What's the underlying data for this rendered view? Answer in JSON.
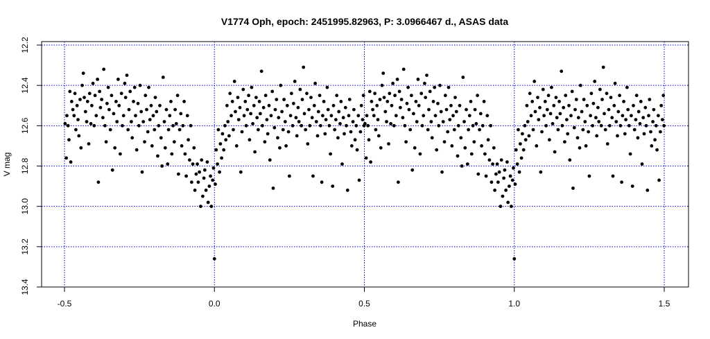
{
  "chart_data": {
    "type": "scatter",
    "title": "V1774 Oph, epoch: 2451995.82963, P: 3.0966467 d., ASAS data",
    "xlabel": "Phase",
    "ylabel": "V mag",
    "xlim": [
      -0.58,
      1.58
    ],
    "ylim": [
      13.4,
      12.2
    ],
    "y_reversed": true,
    "x_ticks": [
      -0.5,
      0.0,
      0.5,
      1.0,
      1.5
    ],
    "x_tick_labels": [
      "-0.5",
      "0.0",
      "0.5",
      "1.0",
      "1.5"
    ],
    "y_ticks": [
      12.2,
      12.4,
      12.6,
      12.8,
      13.0,
      13.2,
      13.4
    ],
    "y_tick_labels": [
      "12.2",
      "12.4",
      "12.6",
      "12.8",
      "13.0",
      "13.2",
      "13.4"
    ],
    "grid": true,
    "grid_color": "#0000cc",
    "point_color": "#000000",
    "note": "Phased light curve; points at phase p in [-0.5,0.5] are repeated at p+1.",
    "points": [
      [
        -0.498,
        12.59
      ],
      [
        -0.494,
        12.76
      ],
      [
        -0.492,
        12.55
      ],
      [
        -0.488,
        12.6
      ],
      [
        -0.485,
        12.67
      ],
      [
        -0.482,
        12.43
      ],
      [
        -0.479,
        12.78
      ],
      [
        -0.476,
        12.48
      ],
      [
        -0.472,
        12.52
      ],
      [
        -0.468,
        12.55
      ],
      [
        -0.465,
        12.44
      ],
      [
        -0.462,
        12.62
      ],
      [
        -0.458,
        12.5
      ],
      [
        -0.455,
        12.57
      ],
      [
        -0.452,
        12.65
      ],
      [
        -0.448,
        12.47
      ],
      [
        -0.445,
        12.71
      ],
      [
        -0.441,
        12.4
      ],
      [
        -0.437,
        12.34
      ],
      [
        -0.434,
        12.46
      ],
      [
        -0.43,
        12.53
      ],
      [
        -0.426,
        12.58
      ],
      [
        -0.423,
        12.48
      ],
      [
        -0.419,
        12.69
      ],
      [
        -0.416,
        12.44
      ],
      [
        -0.412,
        12.59
      ],
      [
        -0.409,
        12.5
      ],
      [
        -0.405,
        12.39
      ],
      [
        -0.401,
        12.6
      ],
      [
        -0.398,
        12.45
      ],
      [
        -0.394,
        12.55
      ],
      [
        -0.39,
        12.37
      ],
      [
        -0.387,
        12.88
      ],
      [
        -0.383,
        12.43
      ],
      [
        -0.38,
        12.51
      ],
      [
        -0.376,
        12.47
      ],
      [
        -0.372,
        12.56
      ],
      [
        -0.369,
        12.32
      ],
      [
        -0.365,
        12.6
      ],
      [
        -0.361,
        12.68
      ],
      [
        -0.358,
        12.49
      ],
      [
        -0.354,
        12.41
      ],
      [
        -0.351,
        12.52
      ],
      [
        -0.347,
        12.62
      ],
      [
        -0.343,
        12.45
      ],
      [
        -0.34,
        12.82
      ],
      [
        -0.336,
        12.54
      ],
      [
        -0.332,
        12.71
      ],
      [
        -0.328,
        12.48
      ],
      [
        -0.325,
        12.58
      ],
      [
        -0.321,
        12.37
      ],
      [
        -0.318,
        12.5
      ],
      [
        -0.314,
        12.74
      ],
      [
        -0.31,
        12.44
      ],
      [
        -0.307,
        12.6
      ],
      [
        -0.303,
        12.55
      ],
      [
        -0.299,
        12.39
      ],
      [
        -0.296,
        12.46
      ],
      [
        -0.292,
        12.35
      ],
      [
        -0.288,
        12.62
      ],
      [
        -0.285,
        12.52
      ],
      [
        -0.281,
        12.43
      ],
      [
        -0.277,
        12.58
      ],
      [
        -0.274,
        12.66
      ],
      [
        -0.27,
        12.48
      ],
      [
        -0.266,
        12.41
      ],
      [
        -0.263,
        12.55
      ],
      [
        -0.259,
        12.72
      ],
      [
        -0.255,
        12.49
      ],
      [
        -0.252,
        12.6
      ],
      [
        -0.248,
        12.4
      ],
      [
        -0.244,
        12.53
      ],
      [
        -0.241,
        12.83
      ],
      [
        -0.237,
        12.58
      ],
      [
        -0.233,
        12.68
      ],
      [
        -0.23,
        12.45
      ],
      [
        -0.226,
        12.52
      ],
      [
        -0.222,
        12.63
      ],
      [
        -0.219,
        12.41
      ],
      [
        -0.215,
        12.57
      ],
      [
        -0.211,
        12.5
      ],
      [
        -0.208,
        12.7
      ],
      [
        -0.204,
        12.55
      ],
      [
        -0.2,
        12.62
      ],
      [
        -0.197,
        12.46
      ],
      [
        -0.193,
        12.53
      ],
      [
        -0.189,
        12.75
      ],
      [
        -0.186,
        12.6
      ],
      [
        -0.182,
        12.5
      ],
      [
        -0.178,
        12.66
      ],
      [
        -0.175,
        12.8
      ],
      [
        -0.171,
        12.36
      ],
      [
        -0.167,
        12.58
      ],
      [
        -0.164,
        12.71
      ],
      [
        -0.16,
        12.52
      ],
      [
        -0.156,
        12.79
      ],
      [
        -0.153,
        12.62
      ],
      [
        -0.149,
        12.55
      ],
      [
        -0.145,
        12.48
      ],
      [
        -0.142,
        12.74
      ],
      [
        -0.138,
        12.6
      ],
      [
        -0.134,
        12.68
      ],
      [
        -0.131,
        12.52
      ],
      [
        -0.127,
        12.59
      ],
      [
        -0.123,
        12.45
      ],
      [
        -0.12,
        12.84
      ],
      [
        -0.116,
        12.62
      ],
      [
        -0.112,
        12.54
      ],
      [
        -0.109,
        12.7
      ],
      [
        -0.105,
        12.6
      ],
      [
        -0.101,
        12.48
      ],
      [
        -0.098,
        12.74
      ],
      [
        -0.094,
        12.85
      ],
      [
        -0.09,
        12.55
      ],
      [
        -0.087,
        12.67
      ],
      [
        -0.083,
        12.77
      ],
      [
        -0.079,
        12.6
      ],
      [
        -0.076,
        12.88
      ],
      [
        -0.072,
        12.79
      ],
      [
        -0.068,
        12.71
      ],
      [
        -0.065,
        12.92
      ],
      [
        -0.061,
        12.84
      ],
      [
        -0.057,
        12.79
      ],
      [
        -0.054,
        12.88
      ],
      [
        -0.05,
        12.83
      ],
      [
        -0.046,
        13.0
      ],
      [
        -0.043,
        12.77
      ],
      [
        -0.039,
        12.95
      ],
      [
        -0.035,
        12.86
      ],
      [
        -0.032,
        12.82
      ],
      [
        -0.028,
        12.92
      ],
      [
        -0.024,
        12.78
      ],
      [
        -0.021,
        12.98
      ],
      [
        -0.017,
        12.9
      ],
      [
        -0.013,
        12.85
      ],
      [
        -0.01,
        13.0
      ],
      [
        -0.006,
        12.87
      ],
      [
        -0.003,
        12.81
      ],
      [
        0.0,
        13.26
      ],
      [
        0.003,
        12.89
      ],
      [
        0.006,
        12.72
      ],
      [
        0.01,
        12.79
      ],
      [
        0.013,
        12.62
      ],
      [
        0.017,
        12.83
      ],
      [
        0.02,
        12.69
      ],
      [
        0.024,
        12.76
      ],
      [
        0.027,
        12.64
      ],
      [
        0.031,
        12.72
      ],
      [
        0.035,
        12.6
      ],
      [
        0.038,
        12.67
      ],
      [
        0.042,
        12.5
      ],
      [
        0.045,
        12.58
      ],
      [
        0.049,
        12.65
      ],
      [
        0.052,
        12.44
      ],
      [
        0.056,
        12.55
      ],
      [
        0.06,
        12.48
      ],
      [
        0.063,
        12.62
      ],
      [
        0.067,
        12.38
      ],
      [
        0.07,
        12.53
      ],
      [
        0.074,
        12.7
      ],
      [
        0.078,
        12.46
      ],
      [
        0.081,
        12.57
      ],
      [
        0.085,
        12.51
      ],
      [
        0.088,
        12.83
      ],
      [
        0.092,
        12.63
      ],
      [
        0.096,
        12.42
      ],
      [
        0.099,
        12.55
      ],
      [
        0.103,
        12.48
      ],
      [
        0.106,
        12.6
      ],
      [
        0.11,
        12.52
      ],
      [
        0.114,
        12.45
      ],
      [
        0.117,
        12.67
      ],
      [
        0.121,
        12.54
      ],
      [
        0.124,
        12.41
      ],
      [
        0.128,
        12.59
      ],
      [
        0.132,
        12.5
      ],
      [
        0.135,
        12.73
      ],
      [
        0.139,
        12.46
      ],
      [
        0.142,
        12.56
      ],
      [
        0.146,
        12.62
      ],
      [
        0.15,
        12.48
      ],
      [
        0.153,
        12.54
      ],
      [
        0.157,
        12.33
      ],
      [
        0.16,
        12.6
      ],
      [
        0.164,
        12.51
      ],
      [
        0.168,
        12.68
      ],
      [
        0.171,
        12.45
      ],
      [
        0.175,
        12.57
      ],
      [
        0.178,
        12.64
      ],
      [
        0.182,
        12.5
      ],
      [
        0.185,
        12.77
      ],
      [
        0.189,
        12.55
      ],
      [
        0.193,
        12.43
      ],
      [
        0.196,
        12.91
      ],
      [
        0.2,
        12.61
      ],
      [
        0.203,
        12.52
      ],
      [
        0.207,
        12.47
      ],
      [
        0.211,
        12.66
      ],
      [
        0.214,
        12.56
      ],
      [
        0.218,
        12.71
      ],
      [
        0.221,
        12.4
      ],
      [
        0.225,
        12.53
      ],
      [
        0.229,
        12.62
      ],
      [
        0.232,
        12.47
      ],
      [
        0.236,
        12.58
      ],
      [
        0.239,
        12.7
      ],
      [
        0.243,
        12.5
      ],
      [
        0.247,
        12.63
      ],
      [
        0.25,
        12.85
      ],
      [
        0.254,
        12.55
      ],
      [
        0.257,
        12.44
      ],
      [
        0.261,
        12.6
      ],
      [
        0.264,
        12.49
      ],
      [
        0.268,
        12.38
      ],
      [
        0.272,
        12.56
      ],
      [
        0.275,
        12.65
      ],
      [
        0.279,
        12.51
      ],
      [
        0.282,
        12.58
      ],
      [
        0.286,
        12.42
      ],
      [
        0.29,
        12.6
      ],
      [
        0.293,
        12.47
      ],
      [
        0.297,
        12.31
      ],
      [
        0.3,
        12.54
      ],
      [
        0.304,
        12.62
      ],
      [
        0.308,
        12.44
      ],
      [
        0.311,
        12.69
      ],
      [
        0.315,
        12.52
      ],
      [
        0.318,
        12.6
      ],
      [
        0.322,
        12.46
      ],
      [
        0.326,
        12.56
      ],
      [
        0.329,
        12.85
      ],
      [
        0.333,
        12.5
      ],
      [
        0.336,
        12.39
      ],
      [
        0.34,
        12.58
      ],
      [
        0.344,
        12.65
      ],
      [
        0.347,
        12.53
      ],
      [
        0.351,
        12.45
      ],
      [
        0.354,
        12.6
      ],
      [
        0.358,
        12.88
      ],
      [
        0.361,
        12.55
      ],
      [
        0.365,
        12.48
      ],
      [
        0.369,
        12.64
      ],
      [
        0.372,
        12.57
      ],
      [
        0.376,
        12.41
      ],
      [
        0.379,
        12.52
      ],
      [
        0.383,
        12.6
      ],
      [
        0.387,
        12.74
      ],
      [
        0.39,
        12.55
      ],
      [
        0.394,
        12.9
      ],
      [
        0.397,
        12.5
      ],
      [
        0.401,
        12.62
      ],
      [
        0.405,
        12.57
      ],
      [
        0.408,
        12.45
      ],
      [
        0.412,
        12.66
      ],
      [
        0.415,
        12.53
      ],
      [
        0.419,
        12.59
      ],
      [
        0.422,
        12.48
      ],
      [
        0.426,
        12.79
      ],
      [
        0.43,
        12.56
      ],
      [
        0.433,
        12.64
      ],
      [
        0.437,
        12.51
      ],
      [
        0.44,
        12.6
      ],
      [
        0.444,
        12.92
      ],
      [
        0.448,
        12.55
      ],
      [
        0.451,
        12.47
      ],
      [
        0.455,
        12.63
      ],
      [
        0.458,
        12.7
      ],
      [
        0.462,
        12.58
      ],
      [
        0.465,
        12.52
      ],
      [
        0.469,
        12.67
      ],
      [
        0.473,
        12.6
      ],
      [
        0.476,
        12.72
      ],
      [
        0.48,
        12.55
      ],
      [
        0.483,
        12.87
      ],
      [
        0.487,
        12.63
      ],
      [
        0.49,
        12.5
      ],
      [
        0.494,
        12.57
      ],
      [
        0.497,
        12.45
      ],
      [
        0.499,
        12.6
      ]
    ]
  }
}
